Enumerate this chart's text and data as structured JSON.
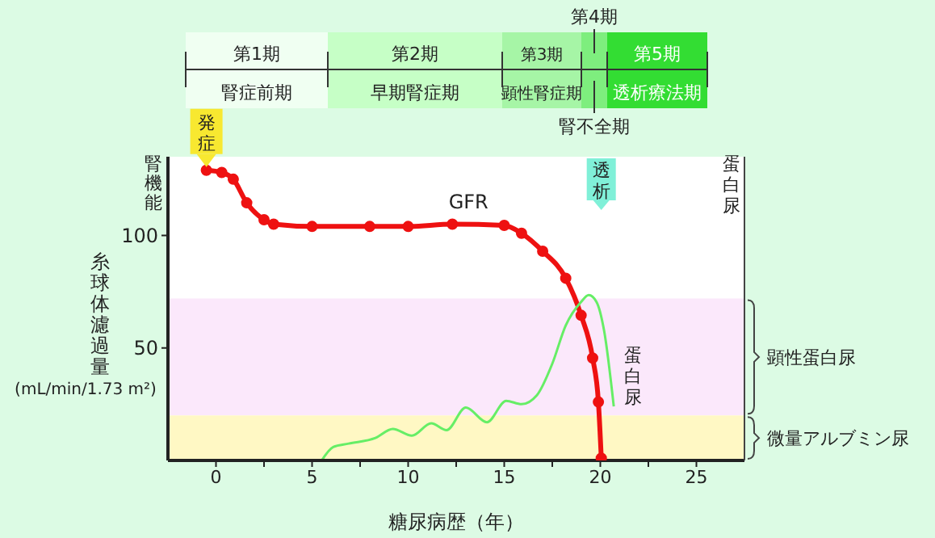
{
  "chart_data": {
    "type": "line",
    "xlabel": "糖尿病歴（年）",
    "ylabel": "糸球体濾過量\n(mL/min/1.73 m²)",
    "xlim": [
      -2.5,
      27.5
    ],
    "ylim": [
      0,
      135
    ],
    "xticks": [
      0,
      {
        "value": 2.5,
        "label": null
      },
      5,
      {
        "value": 7.5,
        "label": null
      },
      10,
      {
        "value": 12.5,
        "label": null
      },
      15,
      {
        "value": 17.5,
        "label": null
      },
      20,
      {
        "value": 22.5,
        "label": null
      },
      25
    ],
    "yticks": [
      50,
      100
    ],
    "series": [
      {
        "name": "GFR",
        "color": "#ee1111",
        "marker": "circle",
        "x": [
          -0.5,
          0.3,
          0.9,
          1.6,
          2.5,
          3,
          5,
          8,
          10,
          12.3,
          15,
          15.9,
          17,
          18.2,
          19,
          19.6,
          19.9,
          20.05
        ],
        "values": [
          129,
          128,
          125,
          114.5,
          107,
          105,
          104,
          104,
          104,
          105,
          104.5,
          101,
          93,
          81,
          64.5,
          45.5,
          26,
          1
        ]
      },
      {
        "name": "蛋白尿",
        "color": "#66ee66",
        "marker": "none",
        "x": [
          5.5,
          6.1,
          6.9,
          8.3,
          9.2,
          10.2,
          11.2,
          12,
          13,
          14.1,
          15.1,
          15.9,
          16.7,
          17.5,
          18.2,
          19,
          19.4,
          19.8,
          20.2,
          20.7
        ],
        "values": [
          0,
          6,
          7.5,
          10,
          14,
          11,
          16.5,
          13.5,
          23.5,
          17,
          26.5,
          25,
          29,
          43,
          60,
          70.5,
          73.5,
          70.5,
          57.5,
          24
        ]
      }
    ],
    "bands": [
      {
        "axis": "y",
        "from": 20,
        "to": 72,
        "label": "顕性蛋白尿",
        "color": "#fbe8fb"
      },
      {
        "axis": "y",
        "from": 0,
        "to": 20,
        "label": "微量アルブミン尿",
        "color": "#fff8c4"
      }
    ],
    "annotations": [
      "腎機能",
      {
        "text": "発症",
        "x": -0.5,
        "y": 129
      },
      "透析",
      "蛋白尿",
      "第1期",
      "腎症前期",
      "第2期",
      "早期腎症期",
      "第3期",
      "顕性腎症期",
      "第4期",
      "腎不全期",
      "第5期",
      "透析療法期"
    ]
  }
}
